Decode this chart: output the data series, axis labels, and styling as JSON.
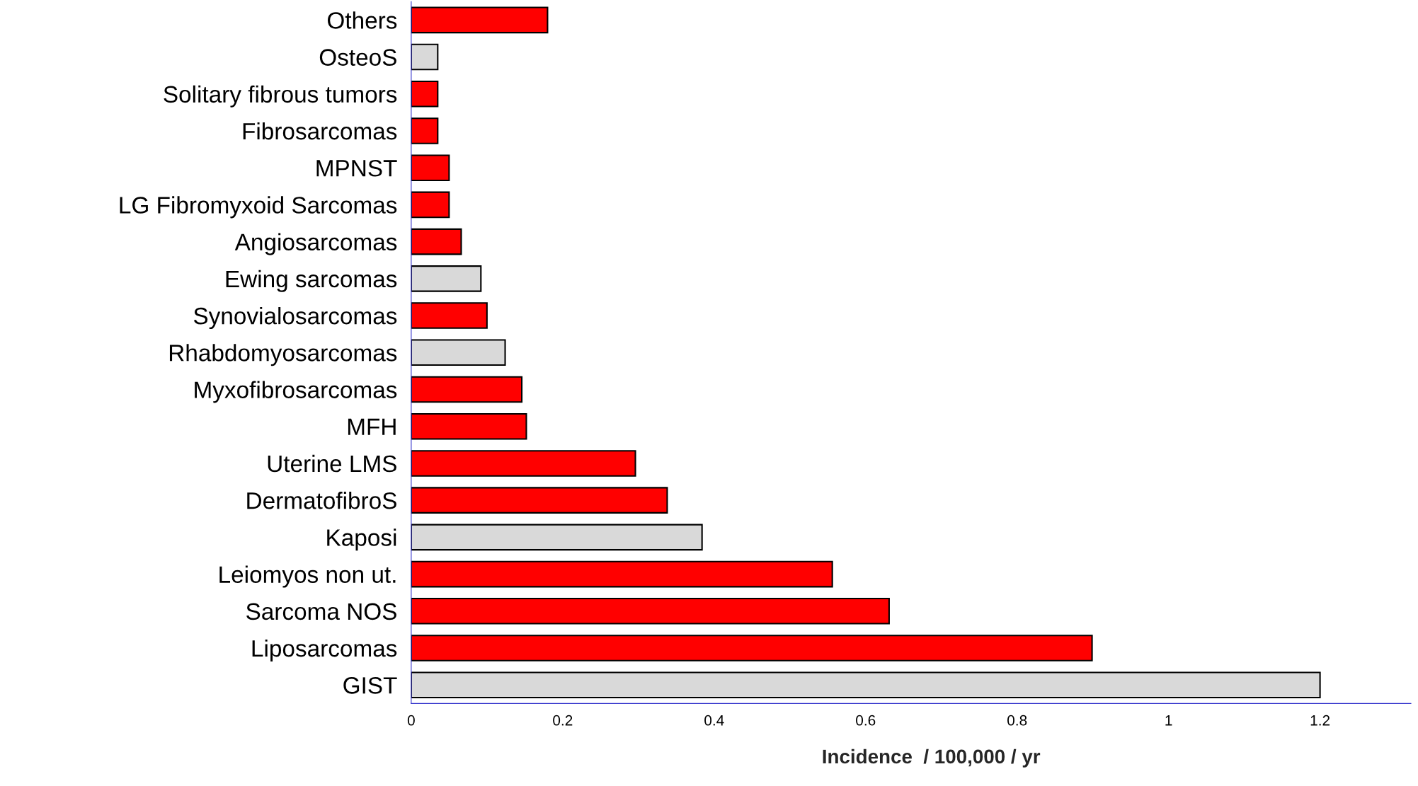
{
  "chart_data": {
    "type": "bar",
    "orientation": "horizontal",
    "xlabel": "Incidence  / 100,000 / yr",
    "categories": [
      "Others",
      "OsteoS",
      "Solitary fibrous tumors",
      "Fibrosarcomas",
      "MPNST",
      "LG Fibromyxoid Sarcomas",
      "Angiosarcomas",
      "Ewing sarcomas",
      "Synovialosarcomas",
      "Rhabdomyosarcomas",
      "Myxofibrosarcomas",
      "MFH",
      "Uterine LMS",
      "DermatofibroS",
      "Kaposi",
      "Leiomyos non ut.",
      "Sarcoma NOS",
      "Liposarcomas",
      "GIST"
    ],
    "values": [
      0.18,
      0.035,
      0.035,
      0.035,
      0.05,
      0.05,
      0.066,
      0.092,
      0.1,
      0.124,
      0.146,
      0.152,
      0.296,
      0.338,
      0.384,
      0.556,
      0.631,
      0.899,
      1.2
    ],
    "colors": [
      "#ff0000",
      "#d9d9d9",
      "#ff0000",
      "#ff0000",
      "#ff0000",
      "#ff0000",
      "#ff0000",
      "#d9d9d9",
      "#ff0000",
      "#d9d9d9",
      "#ff0000",
      "#ff0000",
      "#ff0000",
      "#ff0000",
      "#d9d9d9",
      "#ff0000",
      "#ff0000",
      "#ff0000",
      "#d9d9d9"
    ],
    "xlim": [
      0,
      1.32
    ],
    "xticks": [
      0,
      0.2,
      0.4,
      0.6,
      0.8,
      1,
      1.2
    ],
    "grid": false,
    "legend": false
  }
}
